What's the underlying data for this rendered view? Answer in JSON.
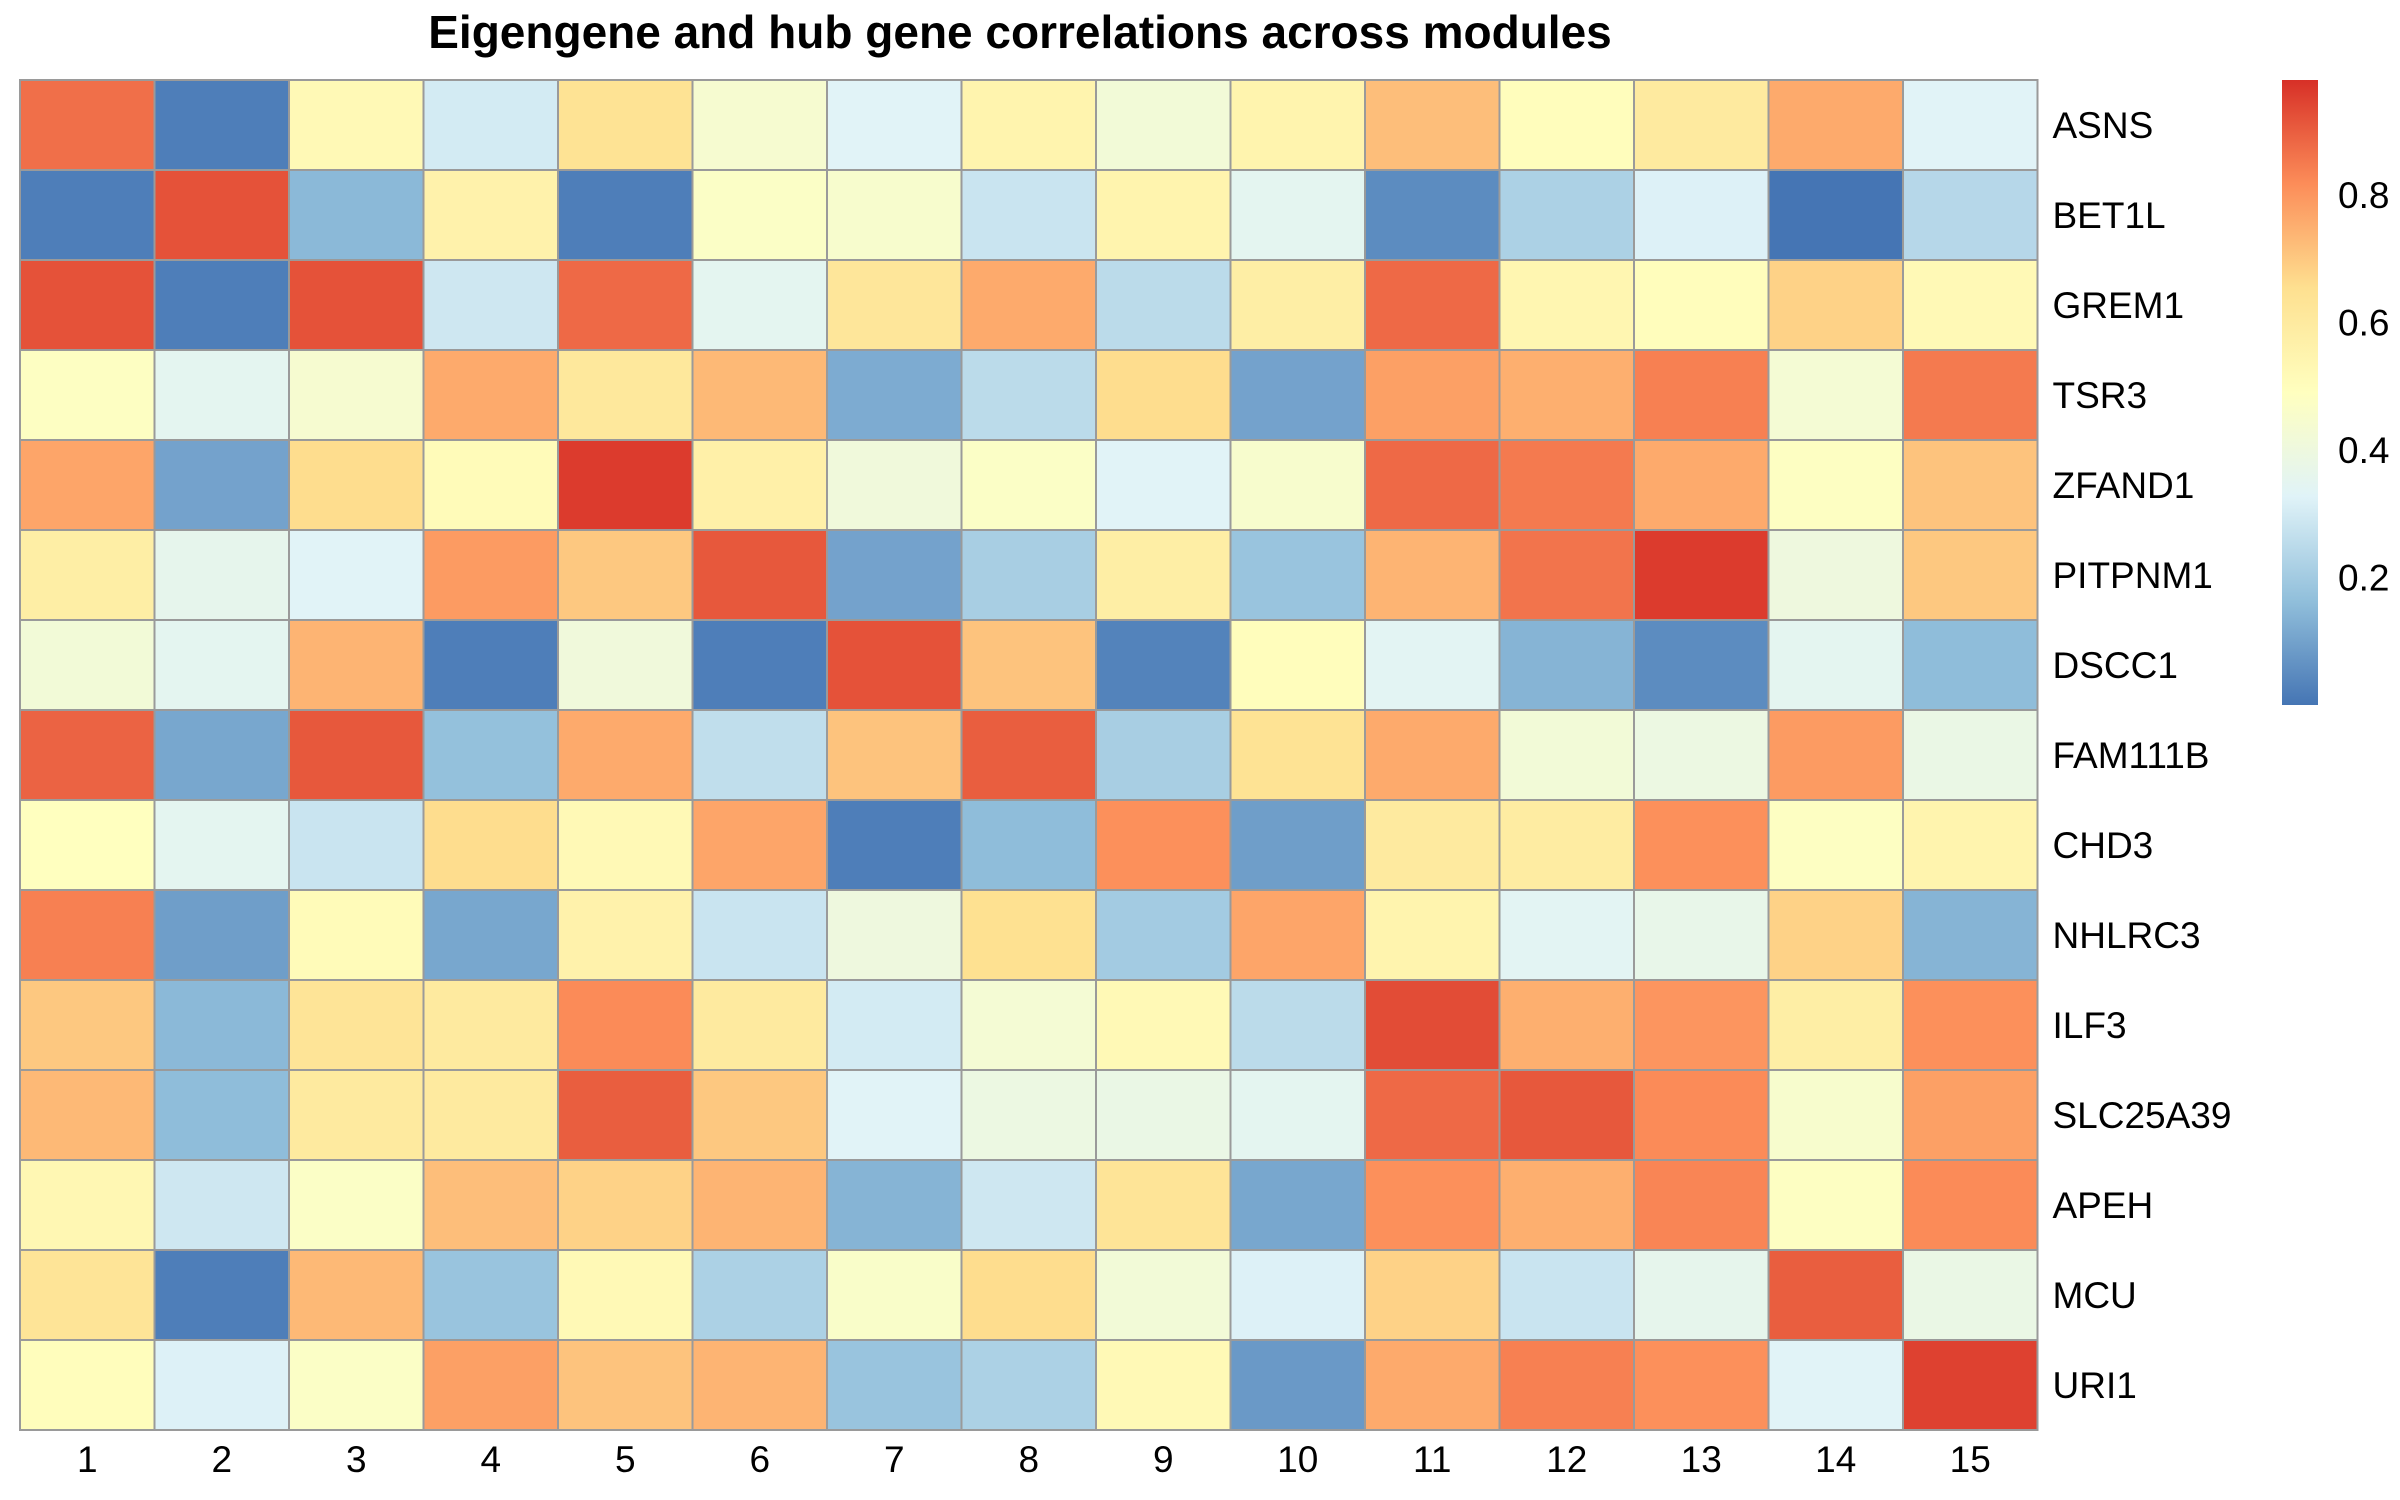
{
  "chart_data": {
    "type": "heatmap",
    "title": "Eigengene and hub gene correlations across modules",
    "columns": [
      "1",
      "2",
      "3",
      "4",
      "5",
      "6",
      "7",
      "8",
      "9",
      "10",
      "11",
      "12",
      "13",
      "14",
      "15"
    ],
    "rows": [
      "ASNS",
      "BET1L",
      "GREM1",
      "TSR3",
      "ZFAND1",
      "PITPNM1",
      "DSCC1",
      "FAM111B",
      "CHD3",
      "NHLRC3",
      "ILF3",
      "SLC25A39",
      "APEH",
      "MCU",
      "URI1"
    ],
    "values": [
      [
        0.87,
        0.02,
        0.52,
        0.3,
        0.64,
        0.44,
        0.33,
        0.55,
        0.42,
        0.55,
        0.72,
        0.5,
        0.6,
        0.76,
        0.33
      ],
      [
        0.02,
        0.92,
        0.15,
        0.56,
        0.02,
        0.47,
        0.45,
        0.28,
        0.55,
        0.35,
        0.05,
        0.22,
        0.32,
        0.0,
        0.24
      ],
      [
        0.92,
        0.02,
        0.92,
        0.29,
        0.88,
        0.35,
        0.62,
        0.76,
        0.25,
        0.58,
        0.88,
        0.54,
        0.5,
        0.68,
        0.52
      ],
      [
        0.48,
        0.35,
        0.44,
        0.76,
        0.61,
        0.73,
        0.12,
        0.25,
        0.66,
        0.1,
        0.78,
        0.75,
        0.84,
        0.43,
        0.85
      ],
      [
        0.77,
        0.1,
        0.66,
        0.51,
        0.96,
        0.57,
        0.41,
        0.47,
        0.33,
        0.45,
        0.88,
        0.85,
        0.76,
        0.48,
        0.71
      ],
      [
        0.58,
        0.36,
        0.33,
        0.79,
        0.7,
        0.91,
        0.1,
        0.21,
        0.58,
        0.18,
        0.74,
        0.86,
        0.96,
        0.4,
        0.7
      ],
      [
        0.42,
        0.35,
        0.74,
        0.02,
        0.41,
        0.02,
        0.92,
        0.71,
        0.03,
        0.5,
        0.34,
        0.14,
        0.05,
        0.35,
        0.16
      ],
      [
        0.89,
        0.11,
        0.91,
        0.17,
        0.76,
        0.26,
        0.71,
        0.9,
        0.21,
        0.64,
        0.76,
        0.42,
        0.39,
        0.79,
        0.38
      ],
      [
        0.49,
        0.35,
        0.28,
        0.66,
        0.52,
        0.77,
        0.02,
        0.16,
        0.81,
        0.09,
        0.6,
        0.59,
        0.81,
        0.48,
        0.55
      ],
      [
        0.84,
        0.09,
        0.51,
        0.11,
        0.56,
        0.28,
        0.4,
        0.65,
        0.2,
        0.77,
        0.55,
        0.34,
        0.37,
        0.68,
        0.14
      ],
      [
        0.7,
        0.15,
        0.63,
        0.6,
        0.82,
        0.6,
        0.3,
        0.43,
        0.52,
        0.25,
        0.93,
        0.75,
        0.8,
        0.58,
        0.81
      ],
      [
        0.73,
        0.16,
        0.6,
        0.6,
        0.9,
        0.7,
        0.33,
        0.39,
        0.38,
        0.35,
        0.88,
        0.91,
        0.82,
        0.45,
        0.78
      ],
      [
        0.53,
        0.29,
        0.47,
        0.72,
        0.68,
        0.74,
        0.14,
        0.29,
        0.63,
        0.11,
        0.81,
        0.75,
        0.83,
        0.48,
        0.82
      ],
      [
        0.63,
        0.02,
        0.73,
        0.18,
        0.52,
        0.22,
        0.46,
        0.66,
        0.42,
        0.32,
        0.68,
        0.28,
        0.36,
        0.9,
        0.38
      ],
      [
        0.5,
        0.32,
        0.47,
        0.78,
        0.71,
        0.74,
        0.18,
        0.22,
        0.52,
        0.08,
        0.76,
        0.84,
        0.81,
        0.33,
        0.95
      ]
    ],
    "colorbar": {
      "range": [
        0.0,
        0.98
      ],
      "ticks": [
        "0.2",
        "0.4",
        "0.6",
        "0.8"
      ],
      "tick_values": [
        0.2,
        0.4,
        0.6,
        0.8
      ]
    },
    "color_scale": [
      "#4575b4",
      "#91bfdb",
      "#e0f3f8",
      "#ffffbf",
      "#fee090",
      "#fc8d59",
      "#d73027"
    ]
  }
}
